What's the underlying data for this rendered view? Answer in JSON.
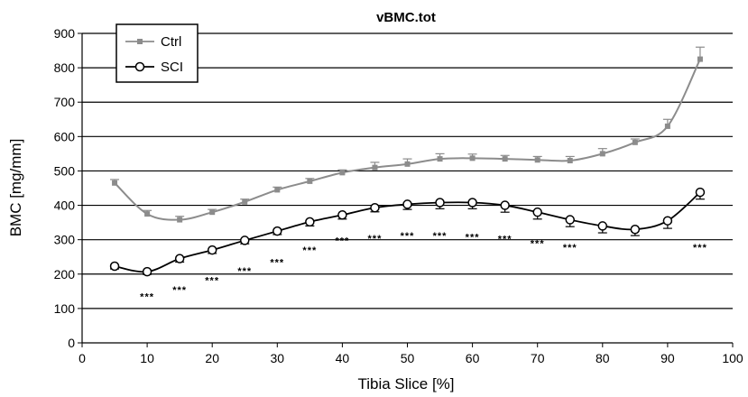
{
  "chart_data": {
    "type": "line",
    "title": "vBMC.tot",
    "xlabel": "Tibia Slice [%]",
    "ylabel": "BMC [mg/mm]",
    "xlim": [
      0,
      100
    ],
    "ylim": [
      0,
      900
    ],
    "x_ticks": [
      "0",
      "10",
      "20",
      "30",
      "40",
      "50",
      "60",
      "70",
      "80",
      "90",
      "100"
    ],
    "y_ticks": [
      "0",
      "100",
      "200",
      "300",
      "400",
      "500",
      "600",
      "700",
      "800",
      "900"
    ],
    "grid": "horizontal",
    "legend_position": "top-left",
    "series": [
      {
        "name": "Ctrl",
        "color": "#8c8c8c",
        "marker": "square",
        "x": [
          5,
          10,
          15,
          20,
          25,
          30,
          35,
          40,
          45,
          50,
          55,
          60,
          65,
          70,
          75,
          80,
          85,
          90,
          95
        ],
        "y": [
          465,
          375,
          358,
          380,
          410,
          445,
          470,
          495,
          510,
          520,
          535,
          537,
          535,
          532,
          530,
          550,
          583,
          630,
          825
        ],
        "error": [
          10,
          10,
          10,
          8,
          8,
          8,
          8,
          8,
          15,
          15,
          15,
          12,
          10,
          10,
          12,
          15,
          10,
          20,
          35
        ]
      },
      {
        "name": "SCI",
        "color": "#000000",
        "marker": "circle",
        "x": [
          5,
          10,
          15,
          20,
          25,
          30,
          35,
          40,
          45,
          50,
          55,
          60,
          65,
          70,
          75,
          80,
          85,
          90,
          95
        ],
        "y": [
          223,
          207,
          245,
          270,
          298,
          325,
          352,
          372,
          393,
          403,
          408,
          408,
          400,
          380,
          358,
          340,
          330,
          355,
          438
        ],
        "error": [
          8,
          8,
          10,
          10,
          10,
          10,
          12,
          12,
          12,
          15,
          18,
          18,
          20,
          20,
          20,
          20,
          18,
          22,
          20
        ]
      }
    ],
    "annotations": [
      {
        "x": 10,
        "y": 135,
        "text": "***"
      },
      {
        "x": 15,
        "y": 155,
        "text": "***"
      },
      {
        "x": 20,
        "y": 183,
        "text": "***"
      },
      {
        "x": 25,
        "y": 210,
        "text": "***"
      },
      {
        "x": 30,
        "y": 235,
        "text": "***"
      },
      {
        "x": 35,
        "y": 270,
        "text": "***"
      },
      {
        "x": 40,
        "y": 298,
        "text": "***"
      },
      {
        "x": 45,
        "y": 305,
        "text": "***"
      },
      {
        "x": 50,
        "y": 312,
        "text": "***"
      },
      {
        "x": 55,
        "y": 312,
        "text": "***"
      },
      {
        "x": 60,
        "y": 308,
        "text": "***"
      },
      {
        "x": 65,
        "y": 303,
        "text": "***"
      },
      {
        "x": 70,
        "y": 290,
        "text": "***"
      },
      {
        "x": 75,
        "y": 278,
        "text": "***"
      },
      {
        "x": 95,
        "y": 278,
        "text": "***"
      }
    ]
  }
}
